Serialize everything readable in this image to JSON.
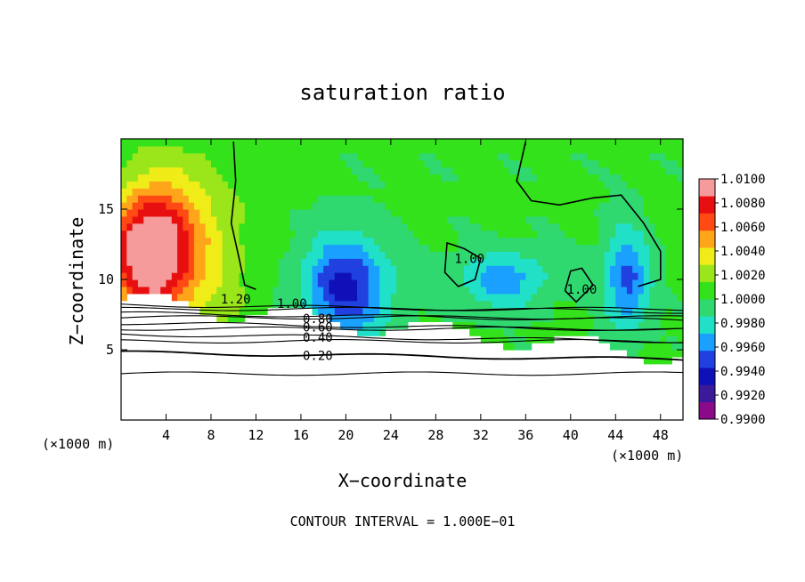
{
  "chart_data": {
    "type": "heatmap",
    "title": "saturation ratio",
    "xlabel": "X−coordinate",
    "ylabel": "Z−coordinate",
    "x_unit_left": "(×1000 m)",
    "x_unit_right": "(×1000 m)",
    "footer": "CONTOUR INTERVAL = 1.000E−01",
    "xlim": [
      0,
      50
    ],
    "ylim": [
      0,
      20
    ],
    "x_ticks": [
      4,
      8,
      12,
      16,
      20,
      24,
      28,
      32,
      36,
      40,
      44,
      48
    ],
    "y_ticks": [
      5,
      10,
      15
    ],
    "colorbar": {
      "range": [
        0.99,
        1.01
      ],
      "labels": [
        "1.0100",
        "1.0080",
        "1.0060",
        "1.0040",
        "1.0020",
        "1.0000",
        "0.9980",
        "0.9960",
        "0.9940",
        "0.9920",
        "0.9900"
      ],
      "colors": [
        "#8a0a8a",
        "#3a1a9a",
        "#1010b8",
        "#2040e0",
        "#1aa0ff",
        "#20e0c8",
        "#30d870",
        "#33e21a",
        "#9ae61a",
        "#f0ec18",
        "#ffa51a",
        "#ff4a14",
        "#e80f10",
        "#f59b9b"
      ]
    },
    "contour_labels": [
      {
        "text": "1.20",
        "x": 10.2,
        "z": 8.6
      },
      {
        "text": "1.00",
        "x": 15.2,
        "z": 8.3
      },
      {
        "text": "0.80",
        "x": 17.5,
        "z": 7.2
      },
      {
        "text": "0.60",
        "x": 17.5,
        "z": 6.6
      },
      {
        "text": "0.40",
        "x": 17.5,
        "z": 5.9
      },
      {
        "text": "0.20",
        "x": 17.5,
        "z": 4.6
      },
      {
        "text": "1.00",
        "x": 31.0,
        "z": 11.5
      },
      {
        "text": "1.00",
        "x": 41.0,
        "z": 9.3
      }
    ],
    "blobs": [
      {
        "x": 2.5,
        "z": 12.0,
        "rx": 3.5,
        "rz": 4.2,
        "v": 1.0092
      },
      {
        "x": 20.0,
        "z": 9.5,
        "rx": 3.8,
        "rz": 3.6,
        "v": 0.9935
      },
      {
        "x": 45.0,
        "z": 10.0,
        "rx": 2.0,
        "rz": 3.5,
        "v": 0.995
      },
      {
        "x": 34.0,
        "z": 10.0,
        "rx": 4.0,
        "rz": 2.0,
        "v": 0.996
      },
      {
        "x": 5.5,
        "z": 12.0,
        "rx": 5.5,
        "rz": 7.0,
        "v": 1.0035
      }
    ]
  }
}
